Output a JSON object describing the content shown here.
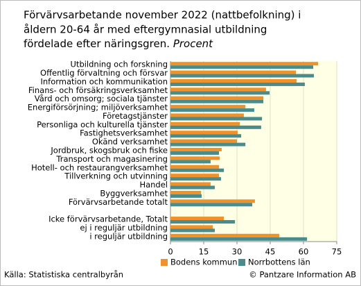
{
  "chart_data": {
    "type": "hbar",
    "title": [
      "Förvärvsarbetande november 2022 (nattbefolkning) i",
      "åldern 20-64 år med eftergymnasial utbildning",
      "fördelade efter näringsgren."
    ],
    "unit": "Procent",
    "categories": [
      "Utbildning och forskning",
      "Offentlig förvaltning och försvar",
      "Information och kommunikation",
      "Finans- och försäkringsverksamhet",
      "Vård och omsorg; sociala tjänster",
      "Energiförsörjning; miljöverksamhet",
      "Företagstjänster",
      "Personliga och kulturella tjänster",
      "Fastighetsverksamhet",
      "Okänd verksamhet",
      "Jordbruk, skogsbruk och fiske",
      "Transport och magasinering",
      "Hotell- och restaurangverksamhet",
      "Tillverkning och utvinning",
      "Handel",
      "Byggverksamhet",
      "Förvärvsarbetande totalt",
      null,
      "Icke förvärvsarbetande, Totalt",
      "ej i reguljär utbildning",
      "i reguljär utbildning"
    ],
    "series": [
      {
        "name": "Bodens kommun",
        "color": "#f0922c",
        "values": [
          66.6,
          56.6,
          56.9,
          43.1,
          41.9,
          33.8,
          33.1,
          31.3,
          30.3,
          30,
          23.1,
          22.2,
          21.9,
          21.9,
          18.1,
          13.8,
          38.1,
          null,
          24.1,
          19.1,
          49.1
        ]
      },
      {
        "name": "Norrbottens län",
        "color": "#4a8c8c",
        "values": [
          64.4,
          64.7,
          60.6,
          44.7,
          41.9,
          37.8,
          41.3,
          40.9,
          31.9,
          33.8,
          21.9,
          18.1,
          24.1,
          22.8,
          20,
          14.1,
          36.9,
          null,
          29.1,
          20,
          61.6
        ]
      }
    ],
    "xlim": [
      0,
      75
    ],
    "xticks": [
      0,
      15,
      30,
      45,
      60,
      75
    ],
    "grid": true,
    "source": "Källa: Statistiska centralbyrån",
    "copyright": "© Pantzare Information AB"
  }
}
